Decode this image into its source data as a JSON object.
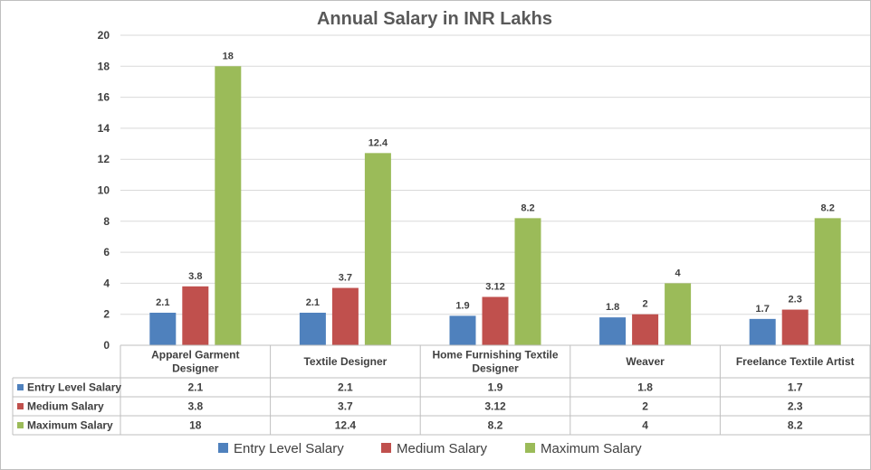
{
  "chart_data": {
    "type": "bar",
    "title": "Annual Salary in INR Lakhs",
    "categories": [
      [
        "Apparel Garment",
        "Designer"
      ],
      [
        "Textile Designer"
      ],
      [
        "Home Furnishing Textile",
        "Designer"
      ],
      [
        "Weaver"
      ],
      [
        "Freelance Textile Artist"
      ]
    ],
    "series": [
      {
        "name": "Entry Level Salary",
        "color": "#4f81bd",
        "values": [
          2.1,
          2.1,
          1.9,
          1.8,
          1.7
        ],
        "labels": [
          "2.1",
          "2.1",
          "1.9",
          "1.8",
          "1.7"
        ]
      },
      {
        "name": "Medium Salary",
        "color": "#c0504d",
        "values": [
          3.8,
          3.7,
          3.12,
          2,
          2.3
        ],
        "labels": [
          "3.8",
          "3.7",
          "3.12",
          "2",
          "2.3"
        ]
      },
      {
        "name": "Maximum Salary",
        "color": "#9bbb59",
        "values": [
          18,
          12.4,
          8.2,
          4,
          8.2
        ],
        "labels": [
          "18",
          "12.4",
          "8.2",
          "4",
          "8.2"
        ]
      }
    ],
    "ylim": [
      0,
      20
    ],
    "yticks": [
      0,
      2,
      4,
      6,
      8,
      10,
      12,
      14,
      16,
      18,
      20
    ],
    "grid": true,
    "data_table": true,
    "legend": "bottom"
  }
}
